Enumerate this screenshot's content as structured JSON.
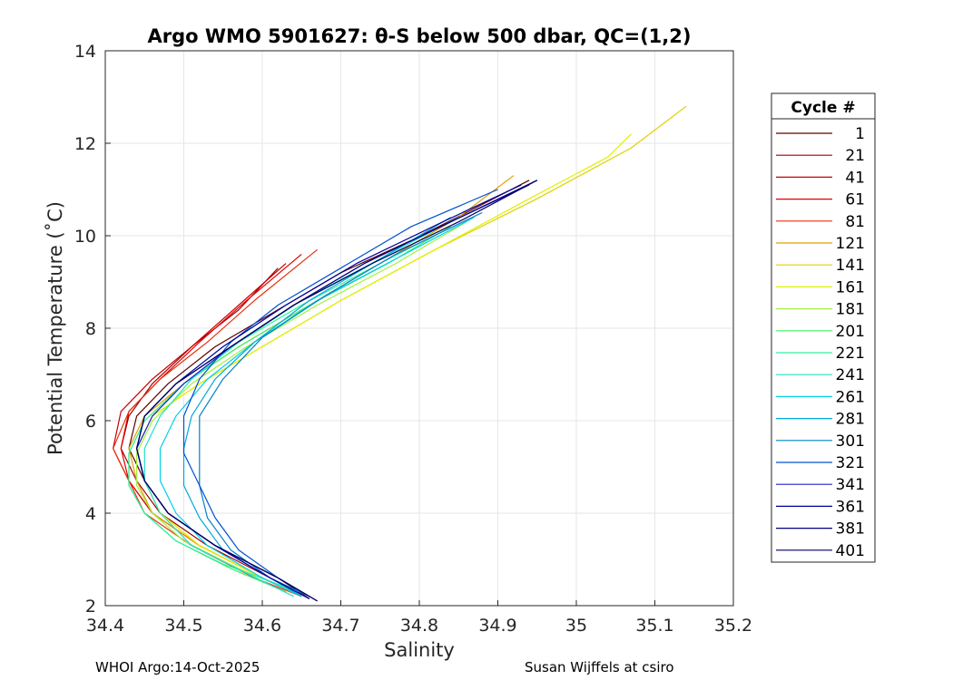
{
  "chart_data": {
    "type": "line",
    "title": "Argo WMO 5901627: θ-S below 500 dbar,  QC=(1,2)",
    "xlabel": "Salinity",
    "ylabel": "Potential Temperature (˚C)",
    "xlim": [
      34.4,
      35.2
    ],
    "ylim": [
      2,
      14
    ],
    "xticks": [
      "34.4",
      "34.5",
      "34.6",
      "34.7",
      "34.8",
      "34.9",
      "35",
      "35.1",
      "35.2"
    ],
    "yticks": [
      "2",
      "4",
      "6",
      "8",
      "10",
      "12",
      "14"
    ],
    "grid": true,
    "legend": {
      "title": "Cycle #",
      "placement": "right",
      "entries": [
        {
          "label": "1",
          "color": "#600000"
        },
        {
          "label": "21",
          "color": "#a00000"
        },
        {
          "label": "41",
          "color": "#c80000"
        },
        {
          "label": "61",
          "color": "#e00000"
        },
        {
          "label": "81",
          "color": "#e83010"
        },
        {
          "label": "121",
          "color": "#e0a000"
        },
        {
          "label": "141",
          "color": "#e0d000"
        },
        {
          "label": "161",
          "color": "#e0f000"
        },
        {
          "label": "181",
          "color": "#a0f040"
        },
        {
          "label": "201",
          "color": "#40f060"
        },
        {
          "label": "221",
          "color": "#30f0a0"
        },
        {
          "label": "241",
          "color": "#20e0c8"
        },
        {
          "label": "261",
          "color": "#00d0e8"
        },
        {
          "label": "281",
          "color": "#00a8d8"
        },
        {
          "label": "301",
          "color": "#0080c8"
        },
        {
          "label": "321",
          "color": "#0050d0"
        },
        {
          "label": "341",
          "color": "#2020d0"
        },
        {
          "label": "361",
          "color": "#0000a0"
        },
        {
          "label": "381",
          "color": "#000080"
        },
        {
          "label": "401",
          "color": "#000060"
        }
      ]
    },
    "series": [
      {
        "name": "1",
        "x": [
          34.66,
          34.62,
          34.54,
          34.48,
          34.45,
          34.43,
          34.44,
          34.48,
          34.54,
          34.62,
          34.7,
          34.79,
          34.86,
          34.94
        ],
        "y": [
          2.15,
          2.6,
          3.3,
          4.0,
          4.7,
          5.4,
          6.1,
          6.8,
          7.6,
          8.4,
          9.2,
          9.9,
          10.5,
          11.2
        ]
      },
      {
        "name": "21",
        "x": [
          34.66,
          34.61,
          34.53,
          34.47,
          34.44,
          34.42,
          34.43,
          34.46,
          34.51,
          34.57,
          34.62
        ],
        "y": [
          2.15,
          2.6,
          3.3,
          4.0,
          4.7,
          5.4,
          6.1,
          6.8,
          7.6,
          8.4,
          9.3
        ]
      },
      {
        "name": "41",
        "x": [
          34.65,
          34.6,
          34.52,
          34.46,
          34.43,
          34.41,
          34.42,
          34.46,
          34.51,
          34.57,
          34.63
        ],
        "y": [
          2.2,
          2.6,
          3.3,
          4.0,
          4.7,
          5.4,
          6.2,
          6.9,
          7.6,
          8.5,
          9.4
        ]
      },
      {
        "name": "61",
        "x": [
          34.65,
          34.6,
          34.52,
          34.46,
          34.43,
          34.42,
          34.43,
          34.47,
          34.52,
          34.58,
          34.65
        ],
        "y": [
          2.2,
          2.6,
          3.3,
          4.0,
          4.7,
          5.4,
          6.2,
          6.9,
          7.7,
          8.6,
          9.6
        ]
      },
      {
        "name": "81",
        "x": [
          34.65,
          34.59,
          34.51,
          34.45,
          34.43,
          34.41,
          34.43,
          34.47,
          34.53,
          34.59,
          34.67
        ],
        "y": [
          2.2,
          2.6,
          3.3,
          4.0,
          4.7,
          5.4,
          6.2,
          6.9,
          7.7,
          8.6,
          9.7
        ]
      },
      {
        "name": "121",
        "x": [
          34.65,
          34.6,
          34.52,
          34.46,
          34.44,
          34.43,
          34.45,
          34.5,
          34.57,
          34.66,
          34.76,
          34.85,
          34.92
        ],
        "y": [
          2.2,
          2.6,
          3.3,
          4.0,
          4.7,
          5.4,
          6.1,
          6.8,
          7.6,
          8.5,
          9.5,
          10.4,
          11.3
        ]
      },
      {
        "name": "141",
        "x": [
          34.65,
          34.6,
          34.52,
          34.47,
          34.45,
          34.44,
          34.46,
          34.52,
          34.6,
          34.7,
          34.82,
          34.95,
          35.07,
          35.14
        ],
        "y": [
          2.2,
          2.6,
          3.3,
          4.0,
          4.7,
          5.4,
          6.1,
          6.8,
          7.6,
          8.6,
          9.7,
          10.8,
          11.9,
          12.8
        ]
      },
      {
        "name": "161",
        "x": [
          34.65,
          34.6,
          34.52,
          34.47,
          34.45,
          34.44,
          34.46,
          34.52,
          34.6,
          34.7,
          34.82,
          34.94,
          35.04,
          35.07
        ],
        "y": [
          2.2,
          2.6,
          3.3,
          4.0,
          4.7,
          5.4,
          6.1,
          6.8,
          7.6,
          8.6,
          9.7,
          10.8,
          11.7,
          12.2
        ]
      },
      {
        "name": "181",
        "x": [
          34.64,
          34.57,
          34.5,
          34.46,
          34.44,
          34.44,
          34.46,
          34.51,
          34.58,
          34.67,
          34.77,
          34.86
        ],
        "y": [
          2.3,
          2.8,
          3.4,
          4.0,
          4.6,
          5.3,
          6.0,
          6.8,
          7.6,
          8.5,
          9.4,
          10.3
        ]
      },
      {
        "name": "201",
        "x": [
          34.63,
          34.56,
          34.49,
          34.45,
          34.43,
          34.43,
          34.45,
          34.5,
          34.57,
          34.66,
          34.76,
          34.84
        ],
        "y": [
          2.3,
          2.8,
          3.4,
          4.0,
          4.6,
          5.3,
          6.0,
          6.8,
          7.6,
          8.5,
          9.4,
          10.2
        ]
      },
      {
        "name": "221",
        "x": [
          34.63,
          34.55,
          34.49,
          34.45,
          34.43,
          34.43,
          34.45,
          34.5,
          34.56,
          34.65,
          34.75,
          34.83
        ],
        "y": [
          2.4,
          2.9,
          3.4,
          4.0,
          4.6,
          5.3,
          6.0,
          6.8,
          7.6,
          8.5,
          9.4,
          10.1
        ]
      },
      {
        "name": "241",
        "x": [
          34.64,
          34.58,
          34.51,
          34.47,
          34.45,
          34.45,
          34.47,
          34.51,
          34.57,
          34.65,
          34.75,
          34.85
        ],
        "y": [
          2.2,
          2.7,
          3.3,
          4.0,
          4.7,
          5.4,
          6.1,
          6.9,
          7.7,
          8.6,
          9.5,
          10.4
        ]
      },
      {
        "name": "261",
        "x": [
          34.65,
          34.6,
          34.53,
          34.49,
          34.47,
          34.47,
          34.49,
          34.53,
          34.59,
          34.67,
          34.77,
          34.87
        ],
        "y": [
          2.2,
          2.6,
          3.3,
          4.0,
          4.7,
          5.4,
          6.1,
          6.9,
          7.7,
          8.6,
          9.5,
          10.4
        ]
      },
      {
        "name": "281",
        "x": [
          34.65,
          34.61,
          34.55,
          34.52,
          34.5,
          34.5,
          34.51,
          34.54,
          34.59,
          34.66,
          34.75,
          34.84
        ],
        "y": [
          2.2,
          2.6,
          3.2,
          3.9,
          4.6,
          5.4,
          6.1,
          6.9,
          7.7,
          8.6,
          9.5,
          10.4
        ]
      },
      {
        "name": "301",
        "x": [
          34.66,
          34.61,
          34.56,
          34.53,
          34.52,
          34.52,
          34.52,
          34.55,
          34.6,
          34.68,
          34.77,
          34.88
        ],
        "y": [
          2.2,
          2.6,
          3.2,
          3.9,
          4.6,
          5.4,
          6.1,
          6.9,
          7.8,
          8.7,
          9.6,
          10.5
        ]
      },
      {
        "name": "321",
        "x": [
          34.66,
          34.62,
          34.57,
          34.54,
          34.52,
          34.5,
          34.5,
          34.52,
          34.56,
          34.62,
          34.7,
          34.79,
          34.9
        ],
        "y": [
          2.2,
          2.6,
          3.2,
          3.9,
          4.6,
          5.3,
          6.1,
          6.9,
          7.7,
          8.5,
          9.3,
          10.2,
          11.0
        ]
      },
      {
        "name": "341",
        "x": [
          34.66,
          34.61,
          34.54,
          34.48,
          34.45,
          34.44,
          34.46,
          34.5,
          34.56,
          34.64,
          34.73,
          34.84,
          34.94
        ],
        "y": [
          2.15,
          2.6,
          3.3,
          4.0,
          4.7,
          5.4,
          6.1,
          6.8,
          7.6,
          8.5,
          9.4,
          10.3,
          11.1
        ]
      },
      {
        "name": "361",
        "x": [
          34.66,
          34.61,
          34.54,
          34.48,
          34.45,
          34.44,
          34.45,
          34.49,
          34.55,
          34.63,
          34.72,
          34.83,
          34.93
        ],
        "y": [
          2.15,
          2.6,
          3.3,
          4.0,
          4.7,
          5.4,
          6.1,
          6.8,
          7.6,
          8.5,
          9.4,
          10.3,
          11.1
        ]
      },
      {
        "name": "381",
        "x": [
          34.67,
          34.62,
          34.54,
          34.48,
          34.45,
          34.44,
          34.45,
          34.49,
          34.56,
          34.64,
          34.73,
          34.84,
          34.95
        ],
        "y": [
          2.1,
          2.6,
          3.3,
          4.0,
          4.7,
          5.4,
          6.1,
          6.8,
          7.6,
          8.5,
          9.4,
          10.3,
          11.2
        ]
      },
      {
        "name": "401",
        "x": [
          34.67,
          34.62,
          34.54,
          34.48,
          34.45,
          34.44,
          34.45,
          34.49,
          34.56,
          34.64,
          34.74,
          34.85,
          34.95
        ],
        "y": [
          2.1,
          2.6,
          3.3,
          4.0,
          4.7,
          5.4,
          6.1,
          6.8,
          7.6,
          8.5,
          9.4,
          10.3,
          11.2
        ]
      }
    ]
  },
  "footer": {
    "left": "WHOI Argo:14-Oct-2025",
    "right": "Susan Wijffels at csiro"
  }
}
